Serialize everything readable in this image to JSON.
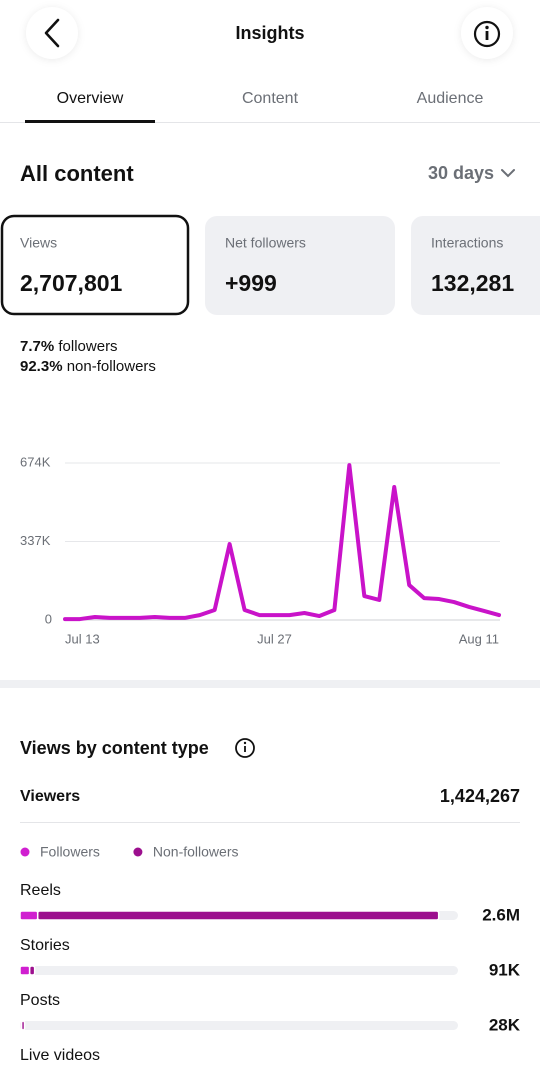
{
  "header": {
    "title": "Insights"
  },
  "tabs": [
    "Overview",
    "Content",
    "Audience"
  ],
  "section": {
    "title": "All content",
    "period": "30 days"
  },
  "cards": [
    {
      "label": "Views",
      "value": "2,707,801"
    },
    {
      "label": "Net followers",
      "value": "+999"
    },
    {
      "label": "Interactions",
      "value": "132,281"
    }
  ],
  "audience_split": [
    {
      "percent": "7.7%",
      "label": "followers"
    },
    {
      "percent": "92.3%",
      "label": "non-followers"
    }
  ],
  "viewers": {
    "label": "Viewers",
    "value": "1,424,267"
  },
  "chart_data": [
    {
      "type": "line",
      "categories": [
        "Jul 13",
        null,
        null,
        null,
        null,
        null,
        null,
        null,
        null,
        null,
        null,
        null,
        null,
        null,
        "Jul 27",
        null,
        null,
        null,
        null,
        null,
        null,
        null,
        null,
        null,
        null,
        null,
        null,
        null,
        null,
        "Aug 11"
      ],
      "values": [
        4000,
        4000,
        13000,
        9000,
        9000,
        9000,
        13000,
        9000,
        9000,
        21000,
        43000,
        326000,
        43000,
        21000,
        21000,
        21000,
        30000,
        17000,
        43000,
        665000,
        103000,
        86000,
        571000,
        150000,
        94000,
        90000,
        77000,
        56000,
        39000,
        21000
      ],
      "color": "#c913c9",
      "ylim": [
        0,
        674000
      ],
      "yticks": [
        0,
        {
          "value": 337000,
          "label": "337K"
        },
        {
          "value": 674000,
          "label": "674K"
        }
      ],
      "grid": true
    },
    {
      "type": "hbar-stacked",
      "title": "Views by content type",
      "categories": [
        "Reels",
        "Stories",
        "Posts",
        "Live videos"
      ],
      "series": [
        {
          "name": "Followers",
          "color": "#d01fd0",
          "values": [
            110000,
            60000,
            10000,
            null
          ]
        },
        {
          "name": "Non-followers",
          "color": "#9c0f8e",
          "values": [
            2490000,
            31000,
            18000,
            null
          ]
        }
      ],
      "values": [
        2600000,
        91000,
        28000,
        null
      ],
      "value_labels": [
        "2.6M",
        "91K",
        "28K",
        null
      ],
      "xlim": [
        0,
        2720000
      ]
    }
  ]
}
